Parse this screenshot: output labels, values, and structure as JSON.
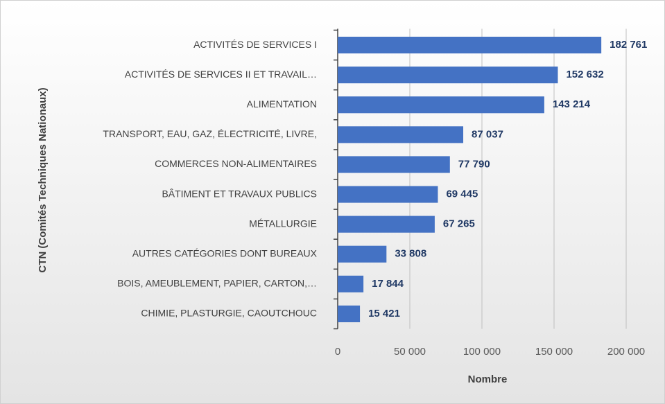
{
  "chart_data": {
    "type": "bar",
    "orientation": "horizontal",
    "categories": [
      "ACTIVITÉS DE SERVICES I",
      "ACTIVITÉS DE SERVICES II ET TRAVAIL…",
      "ALIMENTATION",
      "TRANSPORT, EAU, GAZ, ÉLECTRICITÉ, LIVRE,",
      "COMMERCES NON-ALIMENTAIRES",
      "BÂTIMENT ET TRAVAUX PUBLICS",
      "MÉTALLURGIE",
      "AUTRES CATÉGORIES DONT BUREAUX",
      "BOIS, AMEUBLEMENT, PAPIER, CARTON,…",
      "CHIMIE, PLASTURGIE, CAOUTCHOUC"
    ],
    "values": [
      182761,
      152632,
      143214,
      87037,
      77790,
      69445,
      67265,
      33808,
      17844,
      15421
    ],
    "value_labels": [
      "182 761",
      "152 632",
      "143 214",
      "87 037",
      "77 790",
      "69 445",
      "67 265",
      "33 808",
      "17 844",
      "15 421"
    ],
    "color": "#4472c4",
    "xlim": [
      0,
      200000
    ],
    "xticks": [
      0,
      {
        "value": 50000,
        "label": "50 000"
      },
      {
        "value": 100000,
        "label": "100 000"
      },
      {
        "value": 150000,
        "label": "150 000"
      },
      {
        "value": 200000,
        "label": "200 000"
      }
    ],
    "grid": true,
    "xlabel": "Nombre",
    "ylabel": "CTN (Comités Techniques Nationaux)"
  }
}
